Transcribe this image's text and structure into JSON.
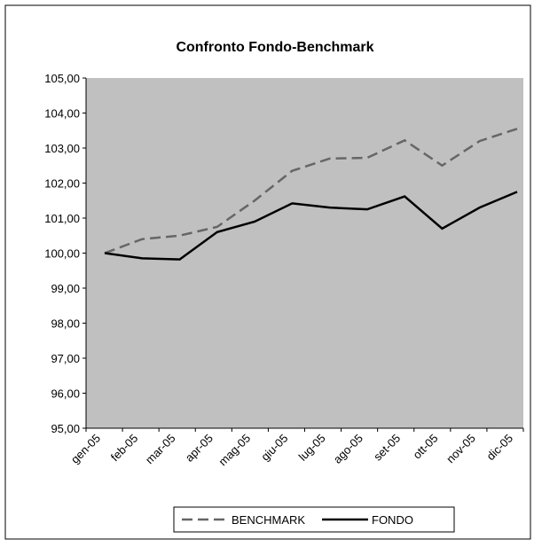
{
  "chart_data": {
    "type": "line",
    "title": "Confronto Fondo-Benchmark",
    "categories": [
      "gen-05",
      "feb-05",
      "mar-05",
      "apr-05",
      "mag-05",
      "giu-05",
      "lug-05",
      "ago-05",
      "set-05",
      "ott-05",
      "nov-05",
      "dic-05"
    ],
    "series": [
      {
        "name": "BENCHMARK",
        "color": "#666666",
        "dash": true,
        "values": [
          100.0,
          100.4,
          100.5,
          100.75,
          101.5,
          102.35,
          102.7,
          102.72,
          103.22,
          102.5,
          103.2,
          103.55
        ]
      },
      {
        "name": "FONDO",
        "color": "#000000",
        "dash": false,
        "values": [
          100.0,
          99.85,
          99.82,
          100.6,
          100.9,
          101.42,
          101.3,
          101.25,
          101.62,
          100.7,
          101.3,
          101.75
        ]
      }
    ],
    "ylim": [
      95,
      105
    ],
    "yticks": [
      {
        "value": 95,
        "label": "95,00"
      },
      {
        "value": 96,
        "label": "96,00"
      },
      {
        "value": 97,
        "label": "97,00"
      },
      {
        "value": 98,
        "label": "98,00"
      },
      {
        "value": 99,
        "label": "99,00"
      },
      {
        "value": 100,
        "label": "100,00"
      },
      {
        "value": 101,
        "label": "101,00"
      },
      {
        "value": 102,
        "label": "102,00"
      },
      {
        "value": 103,
        "label": "103,00"
      },
      {
        "value": 104,
        "label": "104,00"
      },
      {
        "value": 105,
        "label": "105,00"
      }
    ],
    "legend": "bottom",
    "grid": false
  }
}
